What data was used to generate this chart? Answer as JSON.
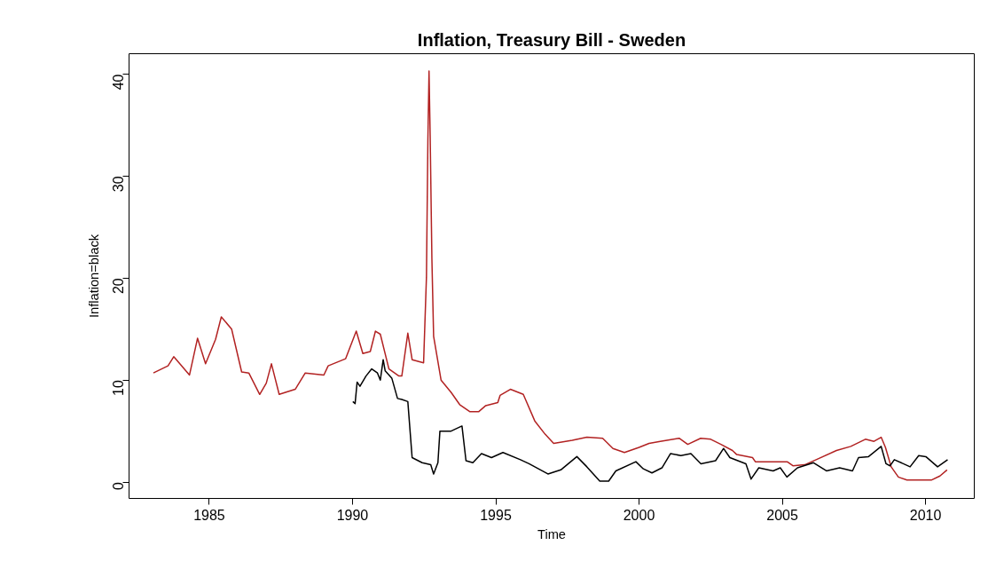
{
  "chart_data": {
    "type": "line",
    "title": "Inflation, Treasury Bill - Sweden",
    "xlabel": "Time",
    "ylabel": "Inflation=black",
    "xlim": [
      1982.2,
      2011.7
    ],
    "ylim": [
      -1.6,
      42
    ],
    "xticks": [
      1985,
      1990,
      1995,
      2000,
      2005,
      2010
    ],
    "yticks": [
      0,
      10,
      20,
      30,
      40
    ],
    "grid": false,
    "marker": "none",
    "line_style": "solid",
    "series": [
      {
        "color": "#b22222",
        "x": [
          1983.05,
          1983.56,
          1983.76,
          1984.31,
          1984.59,
          1984.87,
          1985.22,
          1985.42,
          1985.78,
          1986.13,
          1986.38,
          1986.76,
          1986.99,
          1987.17,
          1987.44,
          1988.0,
          1988.35,
          1989.0,
          1989.15,
          1989.76,
          1990.13,
          1990.36,
          1990.62,
          1990.8,
          1990.97,
          1991.27,
          1991.62,
          1991.72,
          1991.93,
          1992.08,
          1992.48,
          1992.58,
          1992.63,
          1992.67,
          1992.71,
          1992.77,
          1992.83,
          1993.09,
          1993.44,
          1993.74,
          1994.1,
          1994.4,
          1994.65,
          1995.07,
          1995.15,
          1995.51,
          1995.96,
          1996.36,
          1996.72,
          1997.02,
          1997.67,
          1998.18,
          1998.73,
          1999.09,
          1999.49,
          2000.0,
          2000.35,
          2000.74,
          2001.4,
          2001.7,
          2002.15,
          2002.5,
          2002.86,
          2003.26,
          2003.41,
          2003.96,
          2004.06,
          2005.17,
          2005.37,
          2005.78,
          2006.18,
          2006.89,
          2007.39,
          2007.9,
          2008.2,
          2008.45,
          2008.6,
          2008.8,
          2009.05,
          2009.35,
          2010.2,
          2010.5,
          2010.75
        ],
        "values": [
          10.7,
          11.4,
          12.3,
          10.5,
          14.1,
          11.6,
          14.0,
          16.2,
          15.0,
          10.8,
          10.7,
          8.6,
          9.7,
          11.6,
          8.6,
          9.1,
          10.7,
          10.5,
          11.4,
          12.1,
          14.8,
          12.6,
          12.8,
          14.8,
          14.5,
          11.1,
          10.4,
          10.4,
          14.6,
          12.0,
          11.7,
          20.1,
          33.5,
          40.3,
          34.0,
          21.9,
          14.3,
          10.0,
          8.8,
          7.6,
          6.9,
          6.9,
          7.5,
          7.8,
          8.5,
          9.1,
          8.6,
          6.0,
          4.7,
          3.8,
          4.1,
          4.4,
          4.3,
          3.3,
          2.9,
          3.4,
          3.8,
          4.0,
          4.3,
          3.7,
          4.3,
          4.2,
          3.7,
          3.1,
          2.7,
          2.4,
          2.0,
          2.0,
          1.6,
          1.7,
          2.2,
          3.1,
          3.5,
          4.2,
          4.0,
          4.4,
          3.4,
          1.5,
          0.5,
          0.2,
          0.2,
          0.6,
          1.2
        ]
      },
      {
        "color": "#000000",
        "x": [
          1990.01,
          1990.09,
          1990.16,
          1990.26,
          1990.47,
          1990.67,
          1990.87,
          1990.97,
          1991.07,
          1991.14,
          1991.37,
          1991.57,
          1991.72,
          1991.93,
          1992.08,
          1992.43,
          1992.73,
          1992.83,
          1992.98,
          1993.05,
          1993.44,
          1993.82,
          1993.96,
          1994.2,
          1994.5,
          1994.85,
          1995.25,
          1995.86,
          1996.16,
          1996.82,
          1997.27,
          1997.83,
          1998.18,
          1998.63,
          1998.94,
          1999.19,
          1999.89,
          2000.15,
          2000.45,
          2000.8,
          2001.1,
          2001.46,
          2001.81,
          2002.16,
          2002.67,
          2002.95,
          2003.17,
          2003.73,
          2003.91,
          2004.18,
          2004.68,
          2004.93,
          2005.16,
          2005.53,
          2006.09,
          2006.54,
          2007.0,
          2007.45,
          2007.66,
          2008.01,
          2008.45,
          2008.62,
          2008.76,
          2008.91,
          2009.46,
          2009.76,
          2010.01,
          2010.42,
          2010.77
        ],
        "values": [
          7.9,
          7.7,
          9.8,
          9.4,
          10.4,
          11.1,
          10.7,
          10.0,
          12.0,
          10.9,
          10.2,
          8.2,
          8.1,
          7.9,
          2.4,
          1.9,
          1.7,
          0.8,
          1.9,
          5.0,
          5.0,
          5.5,
          2.1,
          1.9,
          2.8,
          2.4,
          2.9,
          2.2,
          1.8,
          0.8,
          1.2,
          2.5,
          1.5,
          0.1,
          0.1,
          1.1,
          2.0,
          1.3,
          0.9,
          1.4,
          2.8,
          2.6,
          2.8,
          1.8,
          2.1,
          3.3,
          2.4,
          1.8,
          0.3,
          1.4,
          1.1,
          1.4,
          0.5,
          1.4,
          1.9,
          1.1,
          1.4,
          1.1,
          2.4,
          2.5,
          3.5,
          1.8,
          1.6,
          2.2,
          1.5,
          2.6,
          2.5,
          1.5,
          2.2
        ]
      }
    ]
  }
}
